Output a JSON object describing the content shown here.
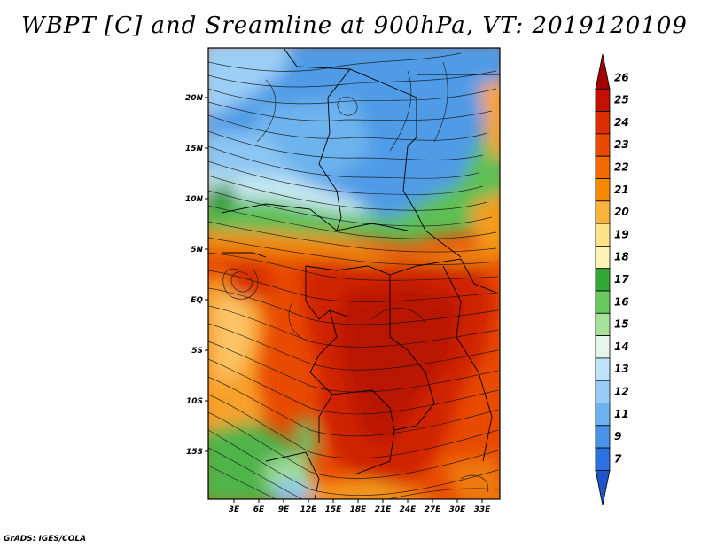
{
  "title": "WBPT [C] and Sreamline at 900hPa, VT: 2019120109",
  "credit": "GrADS: IGES/COLA",
  "lat_labels": [
    "20N",
    "15N",
    "10N",
    "5N",
    "EQ",
    "5S",
    "10S",
    "15S"
  ],
  "lon_labels": [
    "3E",
    "6E",
    "9E",
    "12E",
    "15E",
    "18E",
    "21E",
    "24E",
    "27E",
    "30E",
    "33E"
  ],
  "colorbar": {
    "levels": [
      "26",
      "25",
      "24",
      "23",
      "22",
      "21",
      "20",
      "19",
      "18",
      "17",
      "16",
      "15",
      "14",
      "13",
      "12",
      "11",
      "9",
      "7"
    ],
    "colors": [
      "#a50000",
      "#c31000",
      "#dc2e00",
      "#ea4a00",
      "#f26a00",
      "#f78a00",
      "#fbb23c",
      "#fde289",
      "#fdf3b5",
      "#34a836",
      "#69c95f",
      "#a6e19a",
      "#e4f6e9",
      "#bfe2fb",
      "#98ccf6",
      "#6eb2f0",
      "#4994ea",
      "#2b72e0",
      "#1f55c8"
    ]
  },
  "chart_data": {
    "type": "heatmap",
    "variable": "WBPT [C]",
    "level": "900hPa",
    "valid_time": "2019120109",
    "lon_ticks": [
      3,
      6,
      9,
      12,
      15,
      18,
      21,
      24,
      27,
      30,
      33
    ],
    "lat_ticks": [
      20,
      15,
      10,
      5,
      0,
      -5,
      -10,
      -15
    ],
    "lat_range": [
      -19,
      24.5
    ],
    "lon_range": [
      0.5,
      34.5
    ],
    "colorbar_min": 7,
    "colorbar_max": 26
  }
}
